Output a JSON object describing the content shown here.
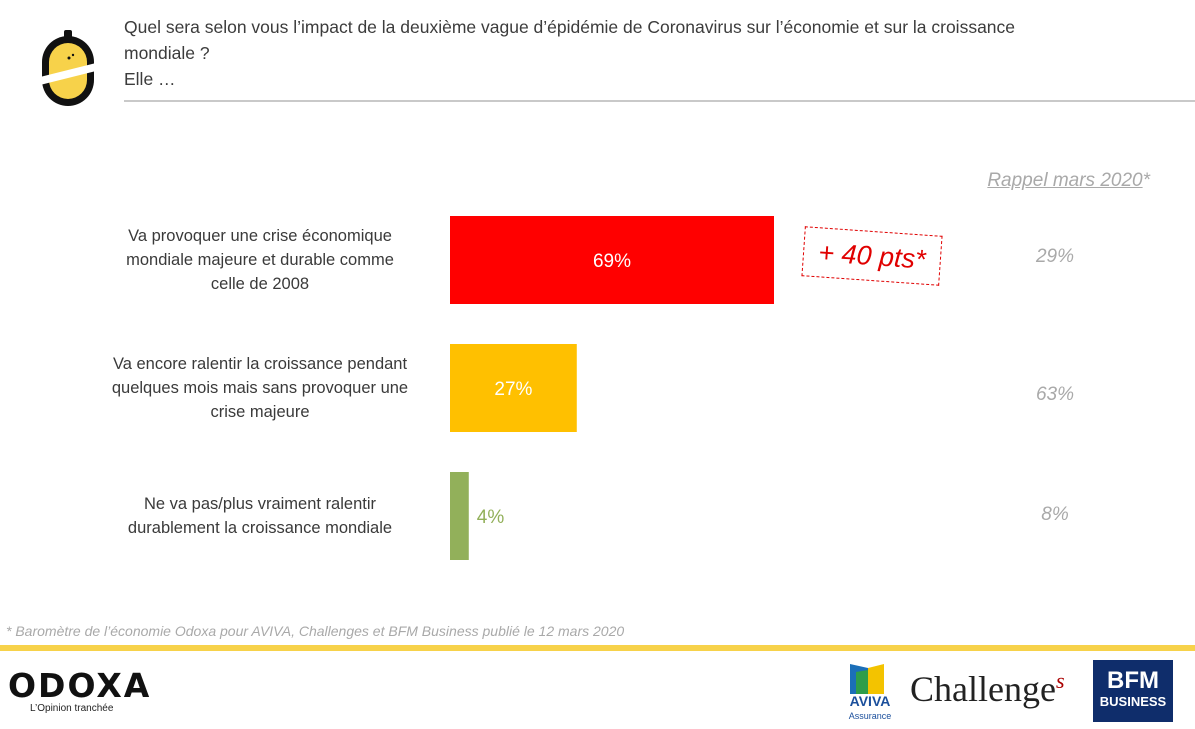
{
  "question": {
    "line1": "Quel sera selon vous l’impact de la deuxième vague d’épidémie de Coronavirus sur l’économie et sur la croissance",
    "line2": "mondiale ?",
    "line3": "Elle …"
  },
  "recall_header": {
    "text": "Rappel mars 2020",
    "star": "*"
  },
  "delta": "+ 40 pts*",
  "footnote": "* Baromètre de l’économie Odoxa pour AVIVA, Challenges et BFM Business publié le 12 mars 2020",
  "brands": {
    "odoxa_name": "ODOXA",
    "odoxa_tagline": "L’Opinion tranchée",
    "aviva": "AVIVA",
    "aviva_sub": "Assurance",
    "challenges": "Challenge",
    "challenges_s": "s",
    "bfm_line1": "BFM",
    "bfm_line2": "BUSINESS"
  },
  "colors": {
    "red": "#ff0000",
    "yellow": "#ffc000",
    "green": "#92b05a",
    "accent": "#f7d24a"
  },
  "chart_data": {
    "type": "bar",
    "orientation": "horizontal",
    "unit": "%",
    "categories": [
      "Va provoquer une crise économique mondiale majeure et durable comme celle de 2008",
      "Va encore ralentir la croissance pendant quelques mois mais sans provoquer une crise majeure",
      "Ne va pas/plus vraiment ralentir durablement la croissance mondiale"
    ],
    "category_lines": [
      [
        "Va provoquer une crise économique",
        "mondiale majeure et durable comme",
        "celle de 2008"
      ],
      [
        "Va encore ralentir la croissance pendant",
        "quelques mois mais sans provoquer une",
        "crise majeure"
      ],
      [
        "Ne va pas/plus vraiment ralentir",
        "durablement la croissance mondiale"
      ]
    ],
    "values": [
      69,
      27,
      4
    ],
    "labels": [
      "69%",
      "27%",
      "4%"
    ],
    "bar_colors": [
      "#ff0000",
      "#ffc000",
      "#92b05a"
    ],
    "label_colors": [
      "#ffffff",
      "#ffffff",
      "#92b05a"
    ],
    "recall_values": [
      "29%",
      "63%",
      "8%"
    ],
    "xlim": [
      0,
      69
    ]
  }
}
